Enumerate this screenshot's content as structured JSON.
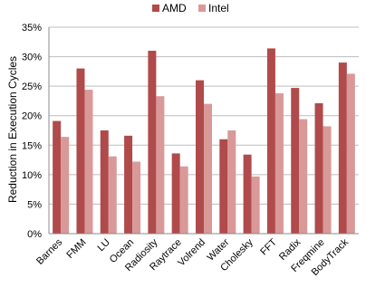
{
  "chart_data": {
    "type": "bar",
    "categories": [
      "Barnes",
      "FMM",
      "LU",
      "Ocean",
      "Radiosity",
      "Raytrace",
      "Volrend",
      "Water",
      "Cholesky",
      "FFT",
      "Radix",
      "Freqmine",
      "BodyTrack"
    ],
    "series": [
      {
        "name": "AMD",
        "color": "#b04a4b",
        "values": [
          19.1,
          28.0,
          17.5,
          16.6,
          31.0,
          13.6,
          26.0,
          16.0,
          13.4,
          31.4,
          24.7,
          22.1,
          29.0
        ]
      },
      {
        "name": "Intel",
        "color": "#d99999",
        "values": [
          16.4,
          24.4,
          13.1,
          12.2,
          23.3,
          11.4,
          22.0,
          17.5,
          9.7,
          23.8,
          19.4,
          18.2,
          27.1
        ]
      }
    ],
    "ylabel": "Reduction in Execution Cycles",
    "xlabel": "",
    "ylim": [
      0,
      35
    ],
    "yticks": [
      "0%",
      "5%",
      "10%",
      "15%",
      "20%",
      "25%",
      "30%",
      "35%"
    ],
    "grid": true,
    "legend": "top-center"
  }
}
